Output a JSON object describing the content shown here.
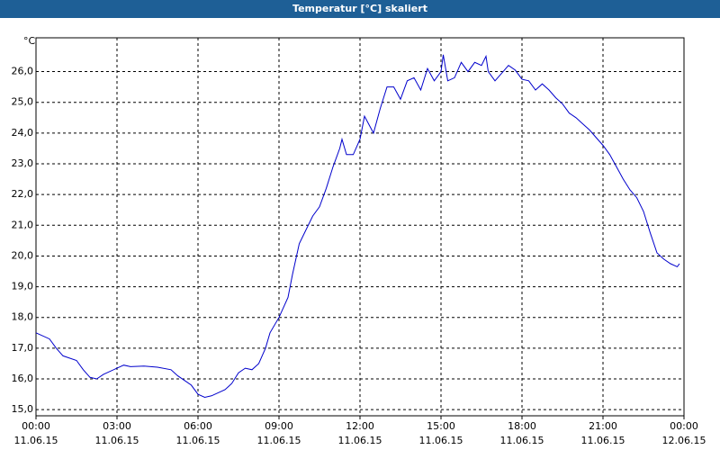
{
  "chart_data": {
    "type": "line",
    "title": "Temperatur [°C] skaliert",
    "y_unit": "°C",
    "x": [
      "2015-06-11T00:00",
      "2015-06-11T00:30",
      "2015-06-11T00:45",
      "2015-06-11T01:00",
      "2015-06-11T01:30",
      "2015-06-11T01:45",
      "2015-06-11T02:00",
      "2015-06-11T02:15",
      "2015-06-11T02:30",
      "2015-06-11T03:00",
      "2015-06-11T03:15",
      "2015-06-11T03:30",
      "2015-06-11T04:00",
      "2015-06-11T04:30",
      "2015-06-11T05:00",
      "2015-06-11T05:15",
      "2015-06-11T05:30",
      "2015-06-11T05:45",
      "2015-06-11T06:00",
      "2015-06-11T06:15",
      "2015-06-11T06:30",
      "2015-06-11T07:00",
      "2015-06-11T07:15",
      "2015-06-11T07:30",
      "2015-06-11T07:45",
      "2015-06-11T08:00",
      "2015-06-11T08:15",
      "2015-06-11T08:30",
      "2015-06-11T08:40",
      "2015-06-11T09:00",
      "2015-06-11T09:20",
      "2015-06-11T09:30",
      "2015-06-11T09:45",
      "2015-06-11T10:00",
      "2015-06-11T10:15",
      "2015-06-11T10:30",
      "2015-06-11T10:45",
      "2015-06-11T11:00",
      "2015-06-11T11:15",
      "2015-06-11T11:20",
      "2015-06-11T11:30",
      "2015-06-11T11:45",
      "2015-06-11T12:00",
      "2015-06-11T12:10",
      "2015-06-11T12:30",
      "2015-06-11T12:45",
      "2015-06-11T13:00",
      "2015-06-11T13:15",
      "2015-06-11T13:30",
      "2015-06-11T13:45",
      "2015-06-11T14:00",
      "2015-06-11T14:15",
      "2015-06-11T14:30",
      "2015-06-11T14:45",
      "2015-06-11T15:00",
      "2015-06-11T15:05",
      "2015-06-11T15:15",
      "2015-06-11T15:30",
      "2015-06-11T15:45",
      "2015-06-11T16:00",
      "2015-06-11T16:15",
      "2015-06-11T16:30",
      "2015-06-11T16:40",
      "2015-06-11T16:45",
      "2015-06-11T17:00",
      "2015-06-11T17:15",
      "2015-06-11T17:30",
      "2015-06-11T17:45",
      "2015-06-11T18:00",
      "2015-06-11T18:15",
      "2015-06-11T18:30",
      "2015-06-11T18:45",
      "2015-06-11T19:00",
      "2015-06-11T19:15",
      "2015-06-11T19:30",
      "2015-06-11T19:45",
      "2015-06-11T20:00",
      "2015-06-11T20:15",
      "2015-06-11T20:30",
      "2015-06-11T20:45",
      "2015-06-11T21:00",
      "2015-06-11T21:15",
      "2015-06-11T21:30",
      "2015-06-11T21:45",
      "2015-06-11T22:00",
      "2015-06-11T22:15",
      "2015-06-11T22:30",
      "2015-06-11T22:45",
      "2015-06-11T23:00",
      "2015-06-11T23:15",
      "2015-06-11T23:30",
      "2015-06-11T23:45",
      "2015-06-11T23:50"
    ],
    "series": [
      {
        "color": "#0000cc",
        "values": [
          17.5,
          17.3,
          17.0,
          16.75,
          16.6,
          16.3,
          16.05,
          16.0,
          16.15,
          16.35,
          16.45,
          16.4,
          16.42,
          16.38,
          16.3,
          16.1,
          15.95,
          15.8,
          15.5,
          15.4,
          15.45,
          15.65,
          15.85,
          16.2,
          16.35,
          16.3,
          16.5,
          17.0,
          17.5,
          18.0,
          18.65,
          19.4,
          20.4,
          20.85,
          21.3,
          21.6,
          22.2,
          22.9,
          23.5,
          23.8,
          23.3,
          23.3,
          23.8,
          24.55,
          24.0,
          24.8,
          25.5,
          25.5,
          25.1,
          25.7,
          25.8,
          25.4,
          26.1,
          25.7,
          26.0,
          26.55,
          25.7,
          25.8,
          26.3,
          26.0,
          26.3,
          26.2,
          26.5,
          26.0,
          25.7,
          25.95,
          26.2,
          26.05,
          25.75,
          25.7,
          25.4,
          25.6,
          25.4,
          25.15,
          24.95,
          24.65,
          24.5,
          24.3,
          24.1,
          23.85,
          23.6,
          23.3,
          22.9,
          22.5,
          22.15,
          21.9,
          21.45,
          20.75,
          20.1,
          19.9,
          19.75,
          19.65,
          19.75
        ]
      }
    ],
    "xlim": [
      "2015-06-11T00:00",
      "2015-06-12T00:00"
    ],
    "xticks": [
      {
        "value": "2015-06-11T00:00",
        "label": [
          "00:00",
          "11.06.15"
        ]
      },
      {
        "value": "2015-06-11T03:00",
        "label": [
          "03:00",
          "11.06.15"
        ]
      },
      {
        "value": "2015-06-11T06:00",
        "label": [
          "06:00",
          "11.06.15"
        ]
      },
      {
        "value": "2015-06-11T09:00",
        "label": [
          "09:00",
          "11.06.15"
        ]
      },
      {
        "value": "2015-06-11T12:00",
        "label": [
          "12:00",
          "11.06.15"
        ]
      },
      {
        "value": "2015-06-11T15:00",
        "label": [
          "15:00",
          "11.06.15"
        ]
      },
      {
        "value": "2015-06-11T18:00",
        "label": [
          "18:00",
          "11.06.15"
        ]
      },
      {
        "value": "2015-06-11T21:00",
        "label": [
          "21:00",
          "11.06.15"
        ]
      },
      {
        "value": "2015-06-12T00:00",
        "label": [
          "00:00",
          "12.06.15"
        ]
      }
    ],
    "ylim": [
      14.8,
      27.1
    ],
    "yticks": [
      {
        "value": 15,
        "label": "15,0"
      },
      {
        "value": 16,
        "label": "16,0"
      },
      {
        "value": 17,
        "label": "17,0"
      },
      {
        "value": 18,
        "label": "18,0"
      },
      {
        "value": 19,
        "label": "19,0"
      },
      {
        "value": 20,
        "label": "20,0"
      },
      {
        "value": 21,
        "label": "21,0"
      },
      {
        "value": 22,
        "label": "22,0"
      },
      {
        "value": 23,
        "label": "23,0"
      },
      {
        "value": 24,
        "label": "24,0"
      },
      {
        "value": 25,
        "label": "25,0"
      },
      {
        "value": 26,
        "label": "26,0"
      }
    ],
    "grid": true
  }
}
